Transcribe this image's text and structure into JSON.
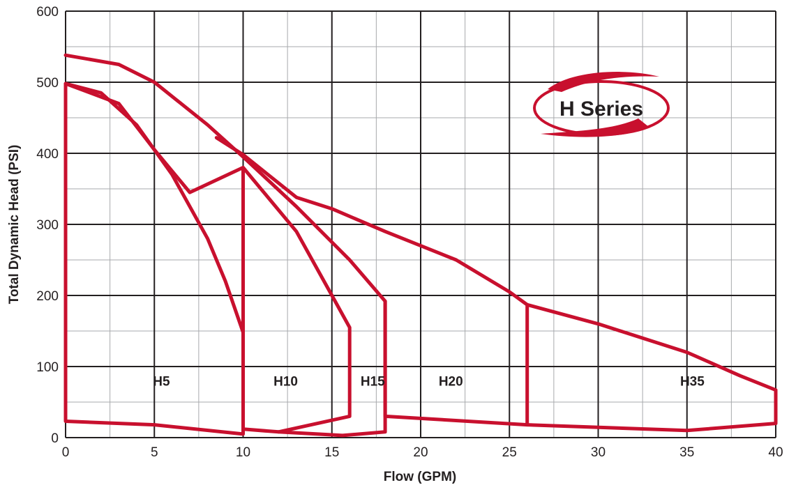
{
  "colors": {
    "curve": "#c8102e",
    "grid_major": "#231f20",
    "grid_minor": "#a7a9ac",
    "badge_ring": "#c8102e"
  },
  "badge": {
    "text": "H Series"
  },
  "chart_data": {
    "type": "line",
    "title": "",
    "xlabel": "Flow (GPM)",
    "ylabel": "Total Dynamic Head (PSI)",
    "xlim": [
      0,
      40
    ],
    "ylim": [
      0,
      600
    ],
    "xticks": [
      0,
      5,
      10,
      15,
      20,
      25,
      30,
      35,
      40
    ],
    "yticks": [
      0,
      100,
      200,
      300,
      400,
      500,
      600
    ],
    "grid": true,
    "legend": "none",
    "series": [
      {
        "name": "H5",
        "x": [
          0,
          2,
          4,
          6,
          8,
          9,
          10,
          10,
          5,
          0,
          0
        ],
        "y": [
          498,
          485,
          440,
          370,
          280,
          220,
          148,
          5,
          18,
          23,
          498
        ]
      },
      {
        "name": "H10",
        "x": [
          0,
          3,
          5,
          7,
          10,
          13,
          15,
          16,
          16,
          12,
          10,
          10
        ],
        "y": [
          498,
          470,
          405,
          345,
          380,
          290,
          200,
          155,
          30,
          8,
          12,
          380
        ]
      },
      {
        "name": "H15",
        "x": [
          0,
          3,
          5,
          8,
          10,
          13,
          16,
          18,
          18,
          15.6,
          12
        ],
        "y": [
          538,
          525,
          500,
          440,
          395,
          325,
          250,
          192,
          8,
          3,
          8
        ]
      },
      {
        "name": "H20",
        "x": [
          8.5,
          10,
          13,
          15,
          18,
          22,
          25,
          26,
          26,
          18,
          18
        ],
        "y": [
          422,
          398,
          338,
          322,
          290,
          250,
          205,
          187,
          18,
          30,
          192
        ]
      },
      {
        "name": "H35",
        "x": [
          26,
          30,
          35,
          38,
          40,
          40,
          35,
          26
        ],
        "y": [
          187,
          160,
          120,
          87,
          67,
          20,
          10,
          18
        ]
      }
    ],
    "zones": [
      {
        "name": "H5",
        "x": 5.4,
        "y": 73
      },
      {
        "name": "H10",
        "x": 12.4,
        "y": 73
      },
      {
        "name": "H15",
        "x": 17.3,
        "y": 73
      },
      {
        "name": "H20",
        "x": 21.7,
        "y": 73
      },
      {
        "name": "H35",
        "x": 35.3,
        "y": 73
      }
    ]
  }
}
